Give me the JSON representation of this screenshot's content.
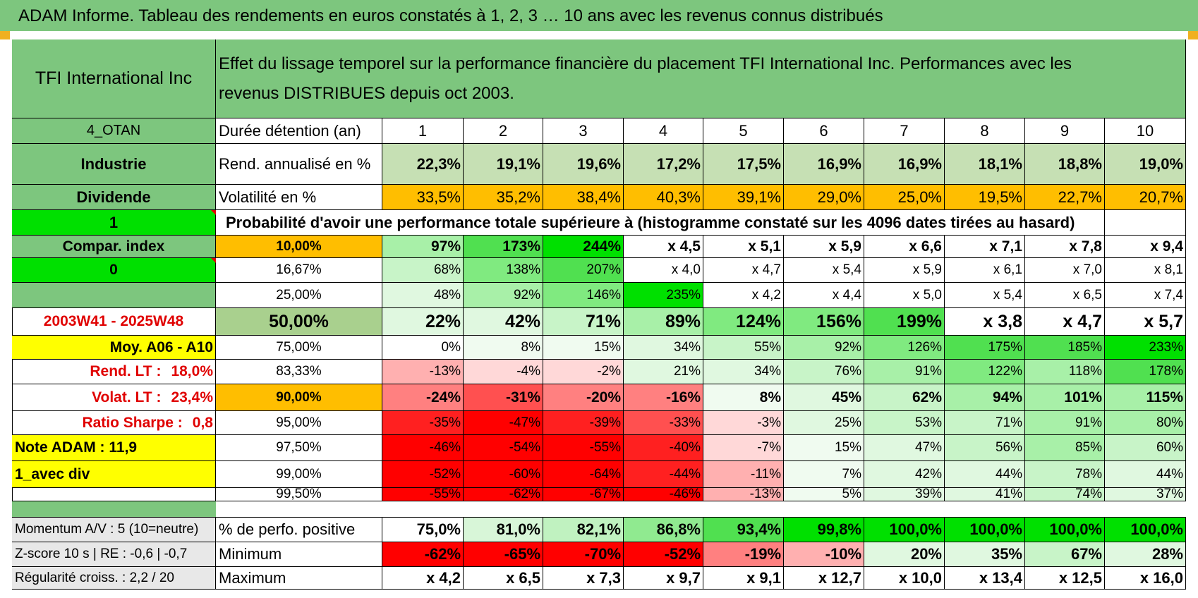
{
  "title": "ADAM Informe. Tableau des rendements en euros constatés à 1, 2, 3 … 10 ans avec les revenus connus distribués",
  "colors": {
    "header_green": "#7dc67e",
    "bright_green": "#00e000",
    "orange": "#ffbe00",
    "yellow": "#ffff00",
    "label_green": "#a9d08e"
  },
  "header": {
    "company": "TFI International Inc",
    "description": "Effet du lissage temporel sur la performance financière du placement TFI International Inc. Performances avec les revenus DISTRIBUES depuis oct 2003."
  },
  "left_column": {
    "code": "4_OTAN",
    "sector": "Industrie",
    "type": "Dividende",
    "value_one": "1",
    "compar_index": "Compar. index",
    "value_zero": "0",
    "period": "2003W41 - 2025W48",
    "moy": "Moy. A06 - A10",
    "rend_lt_label": "Rend. LT :",
    "rend_lt_value": "18,0%",
    "volat_lt_label": "Volat. LT :",
    "volat_lt_value": "23,4%",
    "sharpe_label": "Ratio Sharpe :",
    "sharpe_value": "0,8",
    "note_adam": "Note ADAM : 11,9",
    "avec_div": "1_avec div",
    "momentum": "Momentum A/V : 5 (10=neutre)",
    "zscore": "Z-score 10 s | RE : -0,6 | -0,7",
    "regularite": "Régularité croiss. : 2,2 / 20"
  },
  "rows": {
    "duree": {
      "label": "Durée détention (an)",
      "values": [
        "1",
        "2",
        "3",
        "4",
        "5",
        "6",
        "7",
        "8",
        "9",
        "10"
      ]
    },
    "rend": {
      "label": "Rend. annualisé en %",
      "values": [
        "22,3%",
        "19,1%",
        "19,6%",
        "17,2%",
        "17,5%",
        "16,9%",
        "16,9%",
        "18,1%",
        "18,8%",
        "19,0%"
      ]
    },
    "vol": {
      "label": "Volatilité en %",
      "values": [
        "33,5%",
        "35,2%",
        "38,4%",
        "40,3%",
        "39,1%",
        "29,0%",
        "25,0%",
        "19,5%",
        "22,7%",
        "20,7%"
      ]
    },
    "proba_title": "Probabilité d'avoir une performance totale supérieure à (histogramme constaté sur les 4096 dates tirées au hasard)"
  },
  "prob_rows": [
    {
      "p": "10,00%",
      "values": [
        "97%",
        "173%",
        "244%",
        "x 4,5",
        "x 5,1",
        "x 5,9",
        "x 6,6",
        "x 7,1",
        "x 7,8",
        "x 9,4"
      ]
    },
    {
      "p": "16,67%",
      "values": [
        "68%",
        "138%",
        "207%",
        "x 4,0",
        "x 4,7",
        "x 5,4",
        "x 5,9",
        "x 6,1",
        "x 7,0",
        "x 8,1"
      ]
    },
    {
      "p": "25,00%",
      "values": [
        "48%",
        "92%",
        "146%",
        "235%",
        "x 4,2",
        "x 4,4",
        "x 5,0",
        "x 5,4",
        "x 6,5",
        "x 7,4"
      ]
    },
    {
      "p": "50,00%",
      "values": [
        "22%",
        "42%",
        "71%",
        "89%",
        "124%",
        "156%",
        "199%",
        "x 3,8",
        "x 4,7",
        "x 5,7"
      ]
    },
    {
      "p": "75,00%",
      "values": [
        "0%",
        "8%",
        "15%",
        "34%",
        "55%",
        "92%",
        "126%",
        "175%",
        "185%",
        "233%"
      ]
    },
    {
      "p": "83,33%",
      "values": [
        "-13%",
        "-4%",
        "-2%",
        "21%",
        "34%",
        "76%",
        "91%",
        "122%",
        "118%",
        "178%"
      ]
    },
    {
      "p": "90,00%",
      "values": [
        "-24%",
        "-31%",
        "-20%",
        "-16%",
        "8%",
        "45%",
        "62%",
        "94%",
        "101%",
        "115%"
      ]
    },
    {
      "p": "95,00%",
      "values": [
        "-35%",
        "-47%",
        "-39%",
        "-33%",
        "-3%",
        "25%",
        "53%",
        "71%",
        "91%",
        "80%"
      ]
    },
    {
      "p": "97,50%",
      "values": [
        "-46%",
        "-54%",
        "-55%",
        "-40%",
        "-7%",
        "15%",
        "47%",
        "56%",
        "85%",
        "60%"
      ]
    },
    {
      "p": "99,00%",
      "values": [
        "-52%",
        "-60%",
        "-64%",
        "-44%",
        "-11%",
        "7%",
        "42%",
        "44%",
        "78%",
        "44%"
      ]
    },
    {
      "p": "99,50%",
      "values": [
        "-55%",
        "-62%",
        "-67%",
        "-46%",
        "-13%",
        "5%",
        "39%",
        "41%",
        "74%",
        "37%"
      ]
    }
  ],
  "bottom_rows": [
    {
      "label": "% de perfo. positive",
      "values": [
        "75,0%",
        "81,0%",
        "82,1%",
        "86,8%",
        "93,4%",
        "99,8%",
        "100,0%",
        "100,0%",
        "100,0%",
        "100,0%"
      ]
    },
    {
      "label": "Minimum",
      "values": [
        "-62%",
        "-65%",
        "-70%",
        "-52%",
        "-19%",
        "-10%",
        "20%",
        "35%",
        "67%",
        "28%"
      ]
    },
    {
      "label": "Maximum",
      "values": [
        "x 4,2",
        "x 6,5",
        "x 7,3",
        "x 9,7",
        "x 9,1",
        "x 12,7",
        "x 10,0",
        "x 13,4",
        "x 12,5",
        "x 16,0"
      ]
    }
  ]
}
